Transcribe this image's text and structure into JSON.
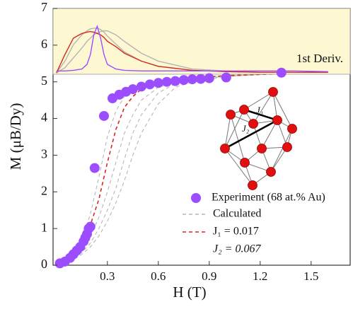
{
  "chart_data": [
    {
      "type": "line",
      "xlabel": "H (T)",
      "ylabel": "M (μB/Dy)",
      "xlim": [
        -0.02,
        1.73
      ],
      "ylim": [
        0,
        7
      ],
      "xticks": [
        0.3,
        0.6,
        0.9,
        1.2,
        1.5
      ],
      "yticks": [
        0,
        1,
        2,
        3,
        4,
        5,
        6,
        7
      ],
      "x": [
        0,
        0.1,
        0.15,
        0.2,
        0.25,
        0.3,
        0.35,
        0.4,
        0.45,
        0.5,
        0.6,
        0.7,
        0.8,
        1.0,
        1.2,
        1.4,
        1.6
      ],
      "series": [
        {
          "name": "Calculated",
          "style": "dashed",
          "color": "#b5b5b5",
          "values": [
            0,
            0.35,
            0.7,
            1.4,
            2.4,
            3.5,
            4.2,
            4.6,
            4.8,
            4.9,
            5.0,
            5.06,
            5.1,
            5.17,
            5.2,
            5.23,
            5.25
          ]
        },
        {
          "style": "dashed",
          "color": "#b5b5b5",
          "values": [
            0,
            0.25,
            0.45,
            0.8,
            1.3,
            2.0,
            2.8,
            3.6,
            4.1,
            4.5,
            4.85,
            5.0,
            5.08,
            5.16,
            5.2,
            5.23,
            5.25
          ]
        },
        {
          "style": "dashed",
          "color": "#b5b5b5",
          "values": [
            0,
            0.2,
            0.35,
            0.6,
            1.0,
            1.5,
            2.1,
            2.9,
            3.6,
            4.1,
            4.7,
            4.95,
            5.05,
            5.15,
            5.2,
            5.23,
            5.25
          ]
        },
        {
          "style": "dashed",
          "color": "#b5b5b5",
          "values": [
            0,
            0.15,
            0.3,
            0.5,
            0.8,
            1.2,
            1.7,
            2.3,
            3.0,
            3.6,
            4.4,
            4.85,
            5.0,
            5.14,
            5.2,
            5.23,
            5.25
          ]
        },
        {
          "name": "J₁ = 0.017",
          "style": "dashed",
          "color": "#d42a1e",
          "values": [
            0,
            0.3,
            0.6,
            1.1,
            1.8,
            2.8,
            3.7,
            4.3,
            4.6,
            4.8,
            4.97,
            5.05,
            5.1,
            5.17,
            5.2,
            5.23,
            5.25
          ]
        },
        {
          "name": "Experiment (68 at.% Au)",
          "style": "scatter",
          "color": "#9b4dff",
          "x": [
            0.02,
            0.05,
            0.08,
            0.1,
            0.12,
            0.14,
            0.16,
            0.17,
            0.18,
            0.19,
            0.2,
            0.225,
            0.28,
            0.33,
            0.37,
            0.41,
            0.45,
            0.5,
            0.55,
            0.6,
            0.65,
            0.7,
            0.75,
            0.8,
            0.85,
            0.9,
            1.0,
            1.325
          ],
          "values": [
            0.05,
            0.1,
            0.2,
            0.3,
            0.4,
            0.5,
            0.65,
            0.75,
            0.85,
            1.0,
            1.05,
            2.65,
            4.07,
            4.55,
            4.65,
            4.73,
            4.8,
            4.87,
            4.93,
            4.97,
            5.0,
            5.02,
            5.05,
            5.07,
            5.08,
            5.1,
            5.12,
            5.25
          ]
        }
      ],
      "annotations": [
        "J₂ = 0.067",
        "J₁",
        "J₂"
      ]
    },
    {
      "type": "line",
      "label": "1st Deriv.",
      "xlim": [
        -0.02,
        1.73
      ],
      "ylim": [
        0,
        1
      ],
      "x": [
        0,
        0.05,
        0.1,
        0.15,
        0.18,
        0.2,
        0.22,
        0.24,
        0.26,
        0.28,
        0.3,
        0.35,
        0.4,
        0.5,
        0.6,
        0.8,
        1.0,
        1.2,
        1.4,
        1.6
      ],
      "series": [
        {
          "color": "#b5b5b5",
          "values": [
            0.02,
            0.2,
            0.45,
            0.6,
            0.66,
            0.69,
            0.7,
            0.7,
            0.68,
            0.64,
            0.58,
            0.46,
            0.34,
            0.2,
            0.12,
            0.06,
            0.04,
            0.03,
            0.03,
            0.03
          ]
        },
        {
          "color": "#b5b5b5",
          "values": [
            0.02,
            0.1,
            0.25,
            0.4,
            0.5,
            0.55,
            0.6,
            0.63,
            0.65,
            0.66,
            0.66,
            0.6,
            0.5,
            0.32,
            0.2,
            0.08,
            0.05,
            0.03,
            0.03,
            0.03
          ]
        },
        {
          "color": "#d42a1e",
          "values": [
            0.02,
            0.3,
            0.55,
            0.62,
            0.64,
            0.65,
            0.64,
            0.62,
            0.6,
            0.56,
            0.5,
            0.42,
            0.32,
            0.2,
            0.12,
            0.06,
            0.04,
            0.03,
            0.03,
            0.03
          ]
        },
        {
          "color": "#9b4dff",
          "values": [
            0.05,
            0.05,
            0.06,
            0.08,
            0.15,
            0.3,
            0.6,
            0.73,
            0.55,
            0.3,
            0.15,
            0.08,
            0.06,
            0.05,
            0.05,
            0.05,
            0.05,
            0.05,
            0.05,
            0.04
          ]
        }
      ]
    }
  ]
}
